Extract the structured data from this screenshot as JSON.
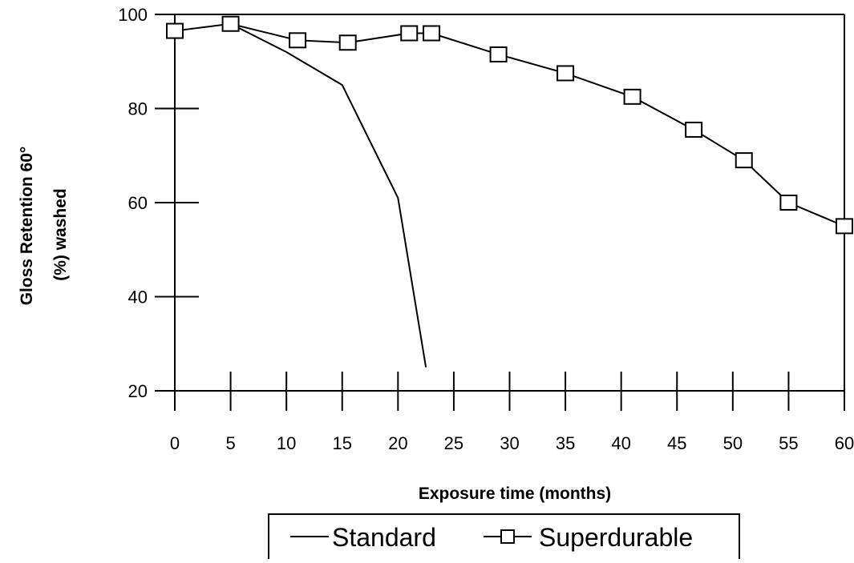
{
  "chart_data": {
    "type": "line",
    "xlabel": "Exposure time (months)",
    "ylabel_line1": "Gloss Retention 60°",
    "ylabel_line2": "(%) washed",
    "xlim": [
      0,
      60
    ],
    "ylim": [
      20,
      100
    ],
    "x_ticks": [
      0,
      5,
      10,
      15,
      20,
      25,
      30,
      35,
      40,
      45,
      50,
      55,
      60
    ],
    "y_ticks": [
      20,
      40,
      60,
      80,
      100
    ],
    "grid": false,
    "legend_position": "bottom",
    "series": [
      {
        "name": "Standard",
        "marker": "none",
        "color": "#000000",
        "x": [
          5,
          10,
          15,
          20,
          22.5
        ],
        "y": [
          98,
          92,
          85,
          61,
          25
        ]
      },
      {
        "name": "Superdurable",
        "marker": "square",
        "color": "#000000",
        "x": [
          0,
          5,
          11,
          15.5,
          21,
          23,
          29,
          35,
          41,
          46.5,
          51,
          55,
          60
        ],
        "y": [
          96.5,
          98,
          94.5,
          94,
          96,
          96,
          91.5,
          87.5,
          82.5,
          75.5,
          69,
          60,
          55
        ]
      }
    ]
  }
}
